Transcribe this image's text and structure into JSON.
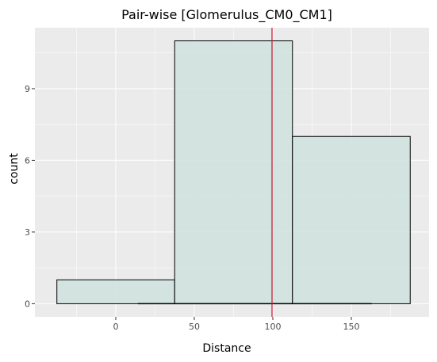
{
  "chart_data": {
    "type": "bar",
    "title": "Pair-wise [Glomerulus_CM0_CM1]",
    "xlabel": "Distance",
    "ylabel": "count",
    "xlim": [
      -51.5,
      199.5
    ],
    "ylim": [
      -0.55,
      11.55
    ],
    "x_ticks": [
      0,
      50,
      100,
      150
    ],
    "y_ticks": [
      0,
      3,
      6,
      9
    ],
    "bins": [
      {
        "x0": -37.5,
        "x1": 37.5,
        "count": 1
      },
      {
        "x0": 37.5,
        "x1": 112.5,
        "count": 11
      },
      {
        "x0": 112.5,
        "x1": 187.5,
        "count": 7
      }
    ],
    "vline": {
      "x": 99.5,
      "color": "#c8102e"
    },
    "density_baseline": {
      "x0": 14,
      "x1": 163
    },
    "colors": {
      "panel": "#ebebeb",
      "grid_major": "#ffffff",
      "bar_fill": "#d0e3df",
      "bar_stroke": "#000000"
    },
    "grid": true,
    "legend": "none"
  }
}
